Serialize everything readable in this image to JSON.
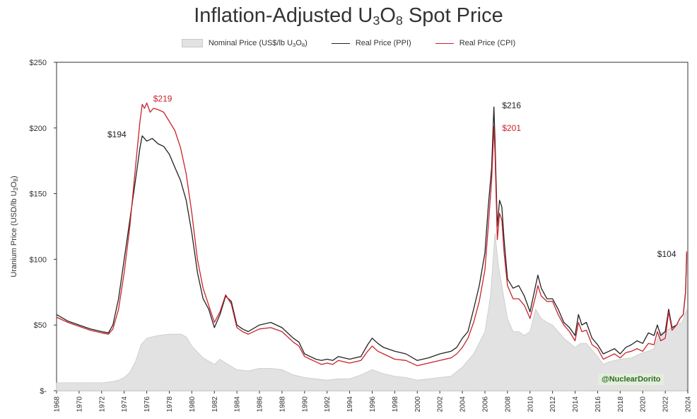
{
  "chart_data": {
    "type": "line",
    "title": "Inflation-Adjusted U3O8 Spot Price",
    "title_parts": {
      "pre": "Inflation-Adjusted U",
      "sub1": "3",
      "mid": "O",
      "sub2": "8",
      "post": " Spot Price"
    },
    "ylabel": "Uranium Price (USD/lb U3O8)",
    "ylabel_parts": {
      "pre": "Uranium Price (USD/lb U",
      "sub1": "3",
      "mid": "O",
      "sub2": "8",
      "post": ")"
    },
    "xlim": [
      1968,
      2024
    ],
    "ylim": [
      0,
      250
    ],
    "y_ticks": [
      0,
      50,
      100,
      150,
      200,
      250
    ],
    "y_tick_labels": [
      "$-",
      "$50",
      "$100",
      "$150",
      "$200",
      "$250"
    ],
    "x_ticks": [
      1968,
      1970,
      1972,
      1974,
      1976,
      1978,
      1980,
      1982,
      1984,
      1986,
      1988,
      1990,
      1992,
      1994,
      1996,
      1998,
      2000,
      2002,
      2004,
      2006,
      2008,
      2010,
      2012,
      2014,
      2016,
      2018,
      2020,
      2022,
      2024
    ],
    "legend": {
      "position": "top-center",
      "entries": [
        {
          "name": "Nominal Price (US$/lb U3O8)",
          "parts": {
            "pre": "Nominal Price (US$/lb U",
            "sub1": "3",
            "mid": "O",
            "sub2": "8",
            "post": ")"
          },
          "style": "area",
          "color": "#e2e2e2"
        },
        {
          "name": "Real Price (PPI)",
          "style": "line",
          "color": "#222222"
        },
        {
          "name": "Real Price (CPI)",
          "style": "line",
          "color": "#c8232c"
        }
      ]
    },
    "series": [
      {
        "name": "Nominal Price (US$/lb U3O8)",
        "type": "area",
        "color": "#e2e2e2",
        "stroke": "#c9c9c9",
        "x": [
          1968,
          1970,
          1972,
          1973,
          1973.5,
          1974,
          1974.5,
          1975,
          1975.5,
          1976,
          1977,
          1978,
          1979,
          1979.5,
          1980,
          1981,
          1982,
          1982.5,
          1983,
          1984,
          1985,
          1986,
          1987,
          1988,
          1989,
          1990,
          1991,
          1992,
          1993,
          1994,
          1995,
          1996,
          1997,
          1998,
          1999,
          2000,
          2001,
          2002,
          2003,
          2004,
          2005,
          2006,
          2006.5,
          2006.9,
          2007.2,
          2007.5,
          2008,
          2008.5,
          2009,
          2009.5,
          2010,
          2010.5,
          2011,
          2011.5,
          2012,
          2013,
          2014,
          2014.5,
          2015,
          2016,
          2016.5,
          2017,
          2018,
          2019,
          2020,
          2020.5,
          2021,
          2021.5,
          2022,
          2022.5,
          2023,
          2023.5,
          2023.9
        ],
        "values": [
          6,
          6,
          6,
          7,
          8,
          10,
          14,
          22,
          35,
          40,
          42,
          43,
          43,
          41,
          34,
          25,
          20,
          24,
          21,
          16,
          15,
          17,
          17,
          16,
          12,
          10,
          9,
          8,
          9,
          9,
          12,
          16,
          13,
          11,
          10,
          8,
          9,
          10,
          11,
          18,
          28,
          45,
          72,
          120,
          95,
          80,
          55,
          45,
          45,
          42,
          45,
          62,
          55,
          52,
          50,
          40,
          33,
          36,
          36,
          26,
          20,
          22,
          24,
          25,
          29,
          30,
          32,
          44,
          45,
          48,
          50,
          52,
          62
        ]
      },
      {
        "name": "Real Price (PPI)",
        "type": "line",
        "color": "#222222",
        "x": [
          1968,
          1969,
          1970,
          1971,
          1972,
          1972.6,
          1973,
          1973.5,
          1974,
          1974.5,
          1975,
          1975.4,
          1975.6,
          1975.8,
          1976,
          1976.5,
          1977,
          1977.5,
          1978,
          1978.5,
          1979,
          1979.5,
          1980,
          1980.5,
          1981,
          1981.5,
          1982,
          1982.5,
          1983,
          1983.5,
          1984,
          1984.5,
          1985,
          1986,
          1987,
          1988,
          1989,
          1989.5,
          1990,
          1990.5,
          1991,
          1991.5,
          1992,
          1992.5,
          1993,
          1994,
          1995,
          1995.6,
          1996,
          1996.5,
          1997,
          1998,
          1999,
          2000,
          2001,
          2002,
          2003,
          2003.5,
          2004,
          2004.5,
          2005,
          2005.5,
          2006,
          2006.3,
          2006.6,
          2006.8,
          2006.9,
          2007.1,
          2007.3,
          2007.5,
          2007.7,
          2008,
          2008.5,
          2009,
          2009.5,
          2010,
          2010.5,
          2010.7,
          2011,
          2011.5,
          2012,
          2012.5,
          2013,
          2013.5,
          2014,
          2014.3,
          2014.6,
          2015,
          2015.5,
          2016,
          2016.5,
          2017,
          2017.5,
          2018,
          2018.5,
          2019,
          2019.5,
          2020,
          2020.5,
          2021,
          2021.3,
          2021.6,
          2022,
          2022.3,
          2022.6,
          2023,
          2023.3,
          2023.6,
          2023.8,
          2023.9
        ],
        "values": [
          58,
          53,
          50,
          47,
          45,
          44,
          50,
          70,
          100,
          130,
          160,
          185,
          194,
          192,
          190,
          192,
          188,
          186,
          180,
          170,
          160,
          145,
          120,
          90,
          70,
          62,
          48,
          58,
          72,
          68,
          50,
          47,
          45,
          50,
          52,
          48,
          40,
          37,
          28,
          26,
          24,
          23,
          24,
          23,
          26,
          24,
          26,
          35,
          40,
          36,
          33,
          30,
          28,
          23,
          25,
          28,
          30,
          33,
          40,
          45,
          62,
          80,
          105,
          140,
          170,
          216,
          190,
          125,
          145,
          140,
          115,
          85,
          78,
          80,
          72,
          60,
          80,
          88,
          78,
          70,
          70,
          62,
          52,
          48,
          42,
          58,
          50,
          52,
          40,
          35,
          28,
          30,
          32,
          28,
          33,
          35,
          38,
          36,
          44,
          42,
          50,
          42,
          45,
          62,
          48,
          50,
          55,
          58,
          75,
          104
        ]
      },
      {
        "name": "Real Price (CPI)",
        "type": "line",
        "color": "#c8232c",
        "x": [
          1968,
          1969,
          1970,
          1971,
          1972,
          1972.6,
          1973,
          1973.5,
          1974,
          1974.5,
          1975,
          1975.4,
          1975.6,
          1975.8,
          1976,
          1976.3,
          1976.6,
          1977,
          1977.5,
          1978,
          1978.5,
          1979,
          1979.5,
          1980,
          1980.5,
          1981,
          1981.5,
          1982,
          1982.5,
          1983,
          1983.5,
          1984,
          1984.5,
          1985,
          1986,
          1987,
          1988,
          1989,
          1989.5,
          1990,
          1990.5,
          1991,
          1991.5,
          1992,
          1992.5,
          1993,
          1994,
          1995,
          1995.6,
          1996,
          1996.5,
          1997,
          1998,
          1999,
          2000,
          2001,
          2002,
          2003,
          2003.5,
          2004,
          2004.5,
          2005,
          2005.5,
          2006,
          2006.3,
          2006.6,
          2006.8,
          2006.9,
          2007.1,
          2007.3,
          2007.5,
          2007.7,
          2008,
          2008.5,
          2009,
          2009.5,
          2010,
          2010.5,
          2010.7,
          2011,
          2011.5,
          2012,
          2012.5,
          2013,
          2013.5,
          2014,
          2014.3,
          2014.6,
          2015,
          2015.5,
          2016,
          2016.5,
          2017,
          2017.5,
          2018,
          2018.5,
          2019,
          2019.5,
          2020,
          2020.5,
          2021,
          2021.3,
          2021.6,
          2022,
          2022.3,
          2022.6,
          2023,
          2023.3,
          2023.6,
          2023.8,
          2023.9
        ],
        "values": [
          56,
          52,
          49,
          46,
          44,
          43,
          47,
          62,
          90,
          125,
          170,
          205,
          218,
          215,
          219,
          212,
          215,
          214,
          212,
          205,
          198,
          185,
          165,
          135,
          100,
          78,
          65,
          52,
          60,
          73,
          66,
          48,
          45,
          43,
          47,
          48,
          45,
          37,
          34,
          26,
          24,
          22,
          20,
          21,
          20,
          23,
          21,
          23,
          30,
          34,
          30,
          28,
          24,
          23,
          19,
          21,
          23,
          25,
          28,
          33,
          40,
          52,
          68,
          92,
          125,
          160,
          201,
          180,
          115,
          135,
          130,
          105,
          80,
          70,
          70,
          65,
          55,
          72,
          80,
          72,
          68,
          68,
          58,
          50,
          45,
          38,
          52,
          45,
          46,
          35,
          32,
          24,
          26,
          28,
          25,
          29,
          30,
          32,
          30,
          36,
          35,
          45,
          38,
          40,
          60,
          46,
          50,
          55,
          58,
          75,
          106
        ]
      }
    ],
    "annotations": [
      {
        "text": "$219",
        "x": 1976.2,
        "y": 219,
        "color": "#c8232c"
      },
      {
        "text": "$194",
        "x": 1975.4,
        "y": 194,
        "color": "#222222"
      },
      {
        "text": "$216",
        "x": 2006.9,
        "y": 216,
        "color": "#222222"
      },
      {
        "text": "$201",
        "x": 2006.9,
        "y": 201,
        "color": "#c8232c"
      },
      {
        "text": "$104",
        "x": 2023.8,
        "y": 104,
        "color": "#222222"
      }
    ],
    "watermark": "@NuclearDorito"
  }
}
